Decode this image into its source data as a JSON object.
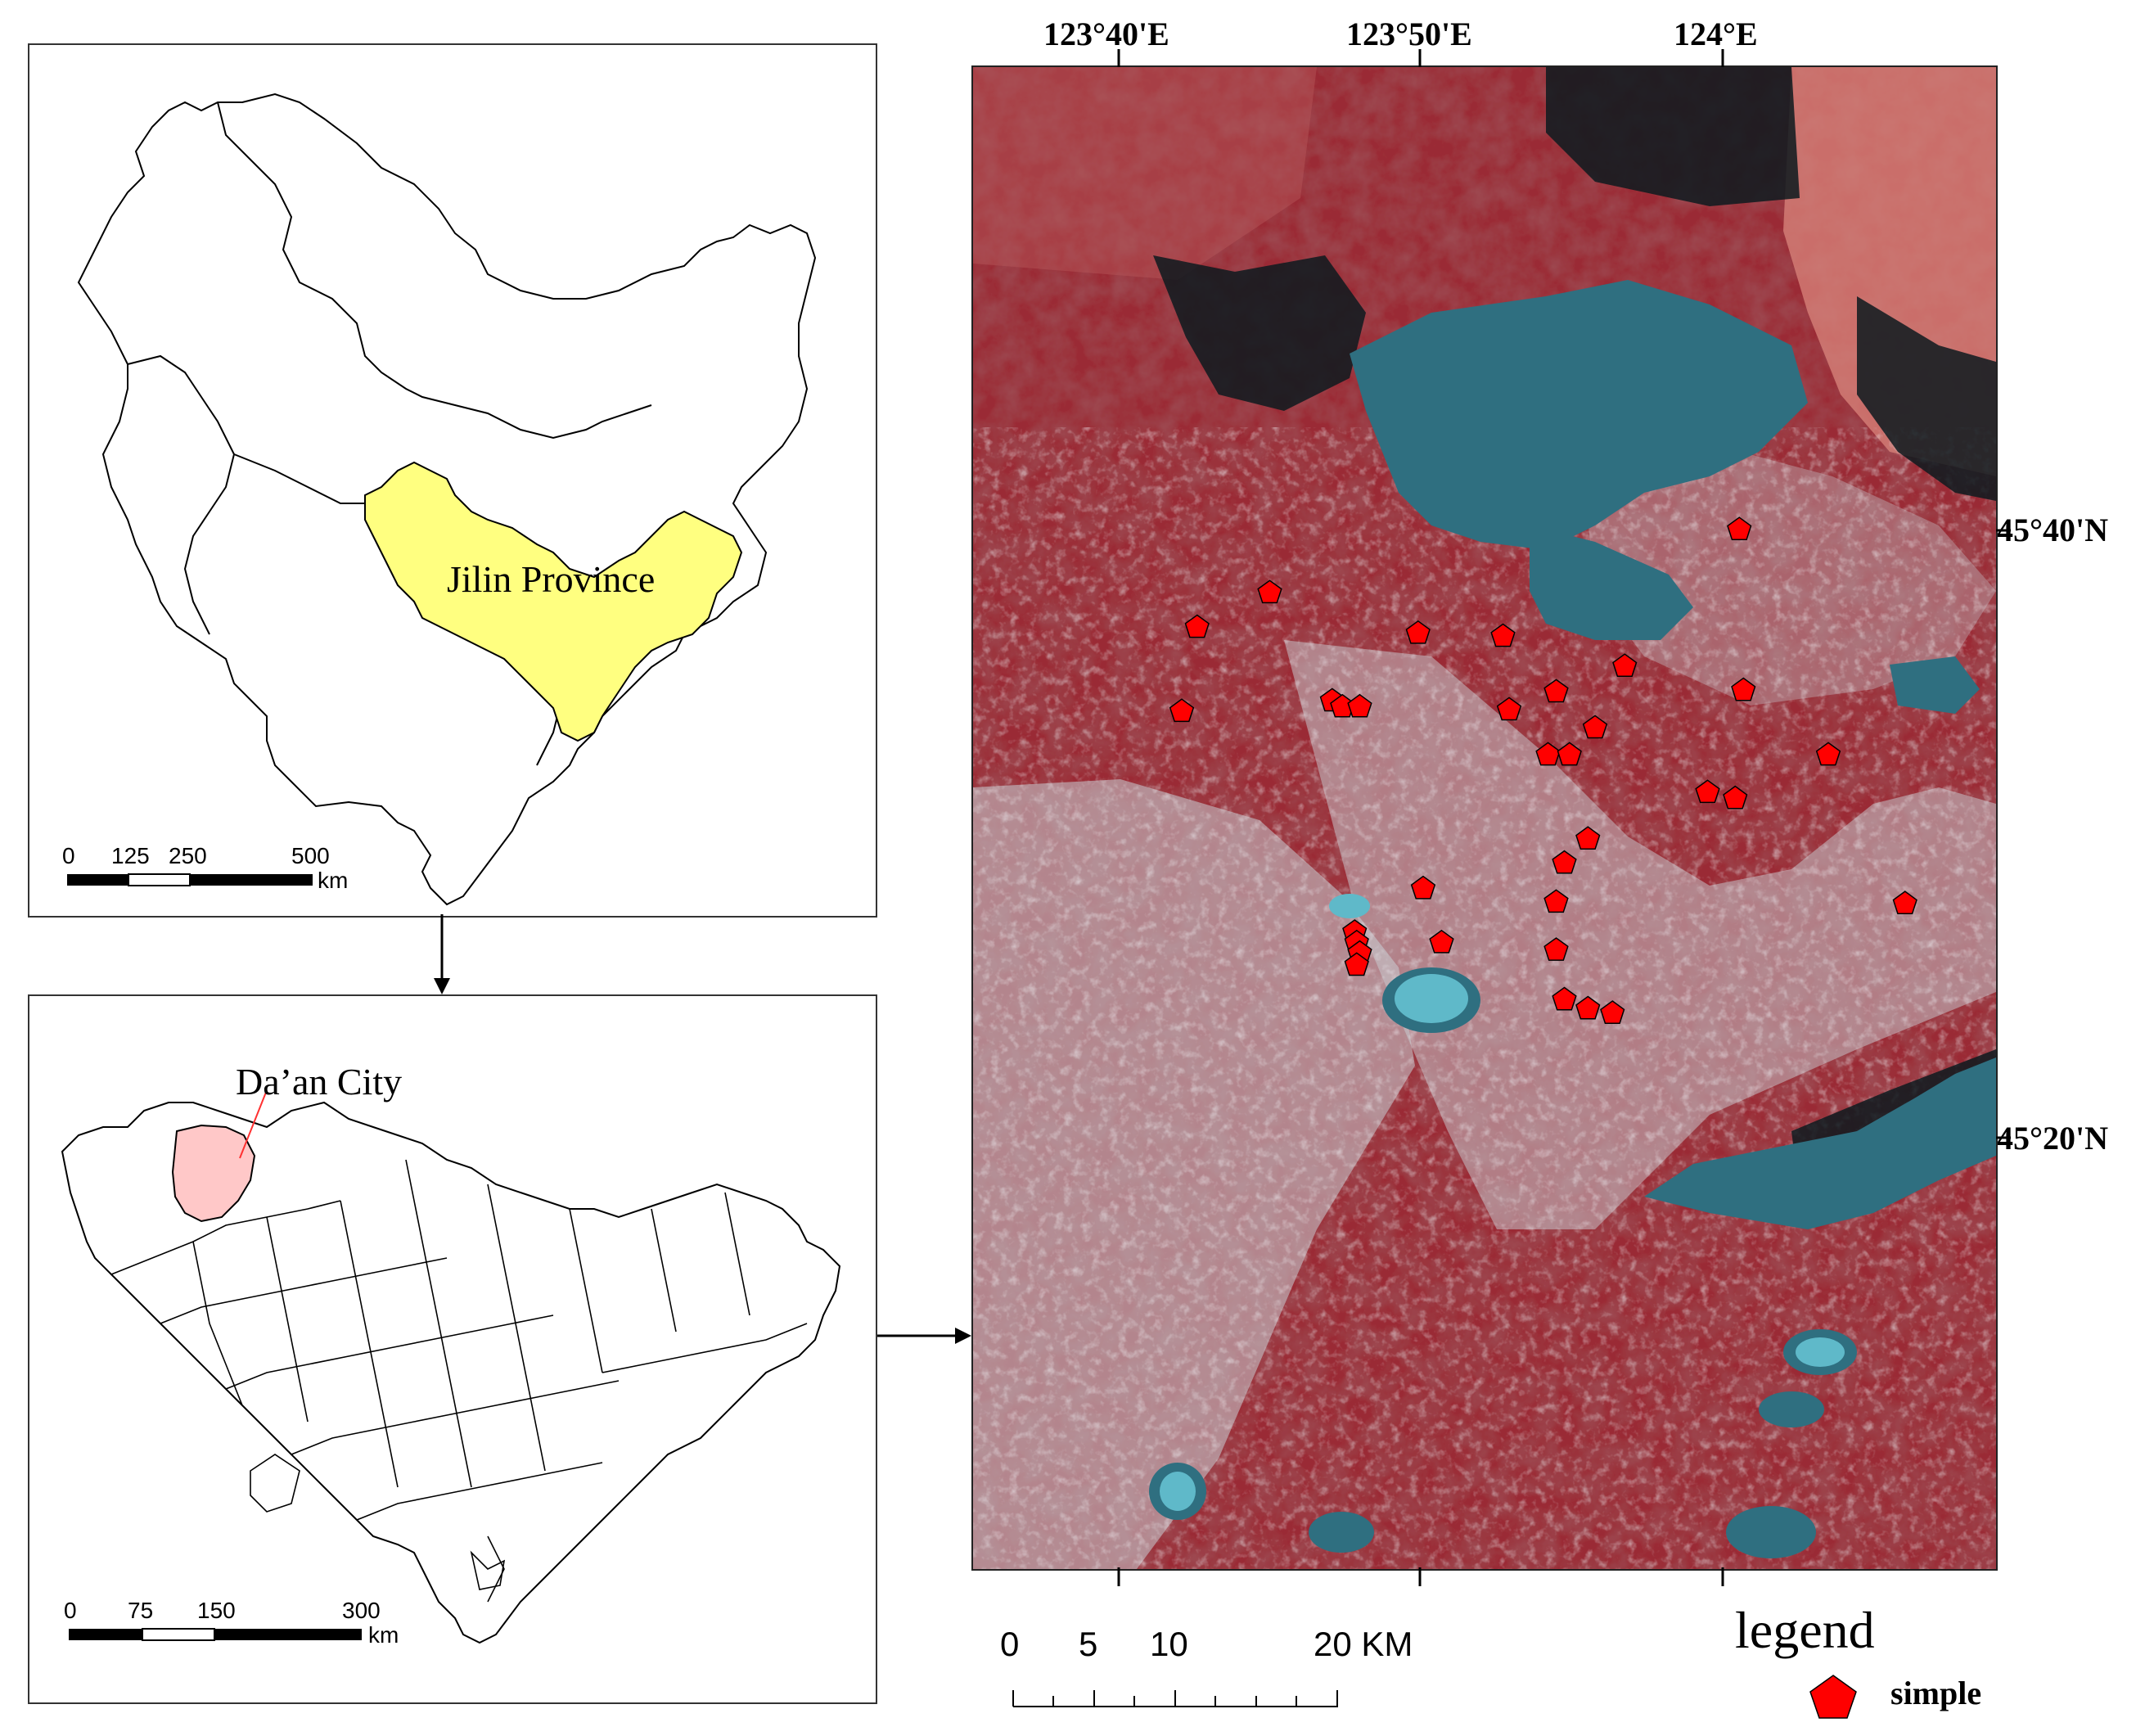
{
  "colors": {
    "province_highlight": "#ffff80",
    "city_highlight": "#ffc8c8",
    "sample_marker": "#ff0000",
    "imagery_vegetation": "#9a2a34",
    "imagery_water": "#2f6f80",
    "imagery_saline": "#c9d0d6"
  },
  "top_map": {
    "label": "Jilin Province",
    "scale_ticks": [
      "0",
      "125",
      "250",
      "500"
    ],
    "scale_unit": "km"
  },
  "bottom_map": {
    "label": "Da’an City",
    "scale_ticks": [
      "0",
      "75",
      "150",
      "300"
    ],
    "scale_unit": "km"
  },
  "satellite_map": {
    "lon_labels": [
      "123°40'E",
      "123°50'E",
      "124°E"
    ],
    "lat_labels": [
      "45°40'N",
      "45°20'N"
    ],
    "scale_ticks": [
      "0",
      "5",
      "10",
      "20 KM"
    ],
    "legend_title": "legend",
    "legend_item": "simple",
    "legend_icon": "pentagon-icon"
  },
  "samples": [
    [
      0.749,
      0.308
    ],
    [
      0.219,
      0.373
    ],
    [
      0.29,
      0.35
    ],
    [
      0.204,
      0.429
    ],
    [
      0.435,
      0.377
    ],
    [
      0.518,
      0.379
    ],
    [
      0.637,
      0.399
    ],
    [
      0.57,
      0.416
    ],
    [
      0.753,
      0.415
    ],
    [
      0.351,
      0.422
    ],
    [
      0.361,
      0.426
    ],
    [
      0.378,
      0.426
    ],
    [
      0.524,
      0.428
    ],
    [
      0.608,
      0.44
    ],
    [
      0.562,
      0.458
    ],
    [
      0.583,
      0.458
    ],
    [
      0.836,
      0.458
    ],
    [
      0.718,
      0.483
    ],
    [
      0.745,
      0.487
    ],
    [
      0.601,
      0.514
    ],
    [
      0.578,
      0.53
    ],
    [
      0.44,
      0.547
    ],
    [
      0.57,
      0.556
    ],
    [
      0.911,
      0.557
    ],
    [
      0.458,
      0.583
    ],
    [
      0.373,
      0.576
    ],
    [
      0.375,
      0.583
    ],
    [
      0.378,
      0.59
    ],
    [
      0.375,
      0.598
    ],
    [
      0.57,
      0.588
    ],
    [
      0.578,
      0.621
    ],
    [
      0.601,
      0.627
    ],
    [
      0.625,
      0.63
    ]
  ]
}
